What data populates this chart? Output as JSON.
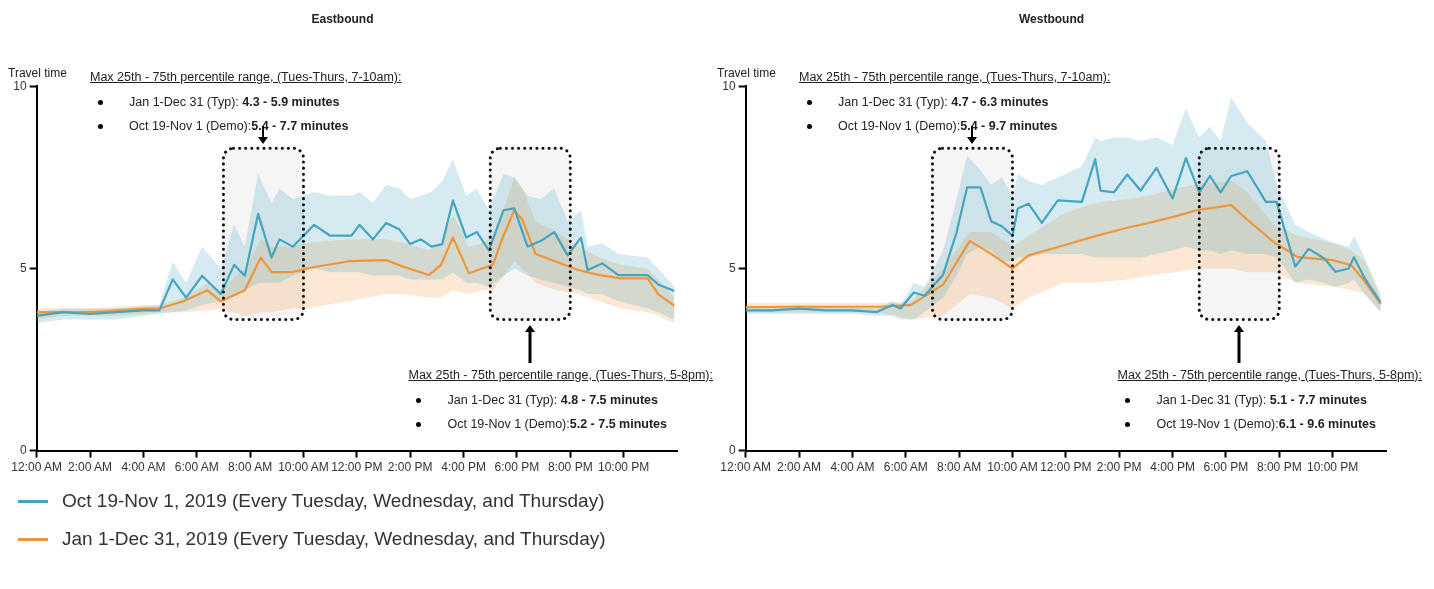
{
  "chart_data": [
    {
      "type": "line",
      "title": "Eastbound",
      "ylabel": "Travel time",
      "xlim": [
        0,
        24
      ],
      "ylim": [
        0,
        10
      ],
      "yticks": [
        0,
        5,
        10
      ],
      "xticks": [
        {
          "value": 0,
          "label": "12:00 AM"
        },
        {
          "value": 2,
          "label": "2:00 AM"
        },
        {
          "value": 4,
          "label": "4:00 AM"
        },
        {
          "value": 6,
          "label": "6:00 AM"
        },
        {
          "value": 8,
          "label": "8:00 AM"
        },
        {
          "value": 10,
          "label": "10:00 AM"
        },
        {
          "value": 12,
          "label": "12:00 PM"
        },
        {
          "value": 14,
          "label": "2:00 PM"
        },
        {
          "value": 16,
          "label": "4:00 PM"
        },
        {
          "value": 18,
          "label": "6:00 PM"
        },
        {
          "value": 20,
          "label": "8:00 PM"
        },
        {
          "value": 22,
          "label": "10:00 PM"
        }
      ],
      "grid": false,
      "legend": "bottom",
      "marker": "none",
      "line_style": "solid",
      "bands": [
        {
          "axis": "x",
          "from": 7,
          "to": 10
        },
        {
          "axis": "x",
          "from": 17,
          "to": 20
        }
      ],
      "annotations": [
        "Max 25th - 75th percentile range,  (Tues-Thurs, 7-10am):",
        "Jan 1-Dec 31 (Typ): 4.3 - 5.9 minutes",
        "Oct 19-Nov 1 (Demo):5.4 - 7.7 minutes",
        "Max 25th - 75th percentile range,  (Tues-Thurs, 5-8pm):",
        "Jan 1-Dec 31 (Typ): 4.8 - 7.5 minutes",
        "Oct 19-Nov 1 (Demo):5.2 - 7.5 minutes"
      ],
      "series": [
        {
          "name": "Oct 19-Nov 1, 2019 (Every Tuesday, Wednesday, and Thursday)",
          "color": "#45a5be",
          "x": [
            0,
            1,
            2,
            3,
            4,
            4.6,
            5.1,
            5.6,
            6.2,
            6.9,
            7.4,
            7.8,
            8.3,
            8.8,
            9.1,
            9.6,
            10.4,
            11,
            11.8,
            12.1,
            12.6,
            13.1,
            13.6,
            14,
            14.4,
            14.8,
            15.2,
            15.6,
            16.1,
            16.5,
            16.95,
            17.5,
            17.9,
            18.4,
            18.9,
            19.4,
            19.9,
            20.4,
            20.65,
            21.2,
            21.8,
            22.9,
            23.3,
            23.9
          ],
          "values": [
            3.7,
            3.8,
            3.75,
            3.8,
            3.85,
            3.85,
            4.7,
            4.2,
            4.8,
            4.3,
            5.1,
            4.8,
            6.5,
            5.3,
            5.8,
            5.6,
            6.2,
            5.9,
            5.9,
            6.2,
            5.8,
            6.25,
            6.07,
            5.67,
            5.8,
            5.6,
            5.67,
            6.87,
            5.85,
            6.0,
            5.5,
            6.6,
            6.65,
            5.6,
            5.76,
            6.0,
            5.36,
            5.85,
            4.96,
            5.14,
            4.82,
            4.82,
            4.56,
            4.38
          ],
          "upper": [
            3.8,
            3.9,
            3.9,
            3.9,
            3.95,
            4.0,
            5.2,
            4.6,
            5.6,
            5.0,
            6.2,
            5.6,
            7.6,
            6.8,
            7.2,
            6.9,
            7.1,
            7.0,
            7.0,
            7.1,
            6.8,
            7.3,
            7.2,
            6.9,
            7.0,
            7.1,
            7.4,
            8.0,
            7.0,
            7.2,
            6.6,
            7.6,
            7.5,
            7.0,
            6.9,
            7.2,
            6.3,
            6.6,
            5.6,
            5.7,
            5.4,
            5.3,
            5.0,
            4.5
          ],
          "lower": [
            3.5,
            3.6,
            3.6,
            3.6,
            3.7,
            3.75,
            3.8,
            3.85,
            4.0,
            4.1,
            4.3,
            4.4,
            4.6,
            4.6,
            4.6,
            4.8,
            5.0,
            4.9,
            4.9,
            4.9,
            4.8,
            4.8,
            4.8,
            4.7,
            4.7,
            4.7,
            4.7,
            4.9,
            4.6,
            4.6,
            4.5,
            4.8,
            5.0,
            4.8,
            4.7,
            4.6,
            4.5,
            4.4,
            4.3,
            4.3,
            4.1,
            3.9,
            3.8,
            3.6
          ]
        },
        {
          "name": "Jan 1-Dec 31, 2019 (Every Tuesday, Wednesday, and Thursday)",
          "color": "#f0963a",
          "x": [
            0,
            1,
            2,
            3,
            4,
            4.6,
            5.5,
            6.4,
            6.9,
            7.8,
            8.4,
            8.8,
            9.6,
            10.1,
            11.7,
            13.1,
            13.75,
            14.7,
            15.15,
            15.6,
            16.2,
            16.7,
            17.1,
            17.4,
            17.9,
            18.2,
            18.7,
            19.5,
            20.3,
            21.1,
            21.9,
            22.9,
            23.3,
            23.9
          ],
          "values": [
            3.8,
            3.8,
            3.8,
            3.85,
            3.9,
            3.9,
            4.1,
            4.4,
            4.1,
            4.4,
            5.3,
            4.9,
            4.9,
            5.0,
            5.2,
            5.23,
            5.05,
            4.82,
            5.09,
            5.85,
            4.87,
            5.0,
            5.1,
            5.72,
            6.6,
            6.34,
            5.4,
            5.18,
            4.96,
            4.82,
            4.73,
            4.73,
            4.29,
            3.98
          ],
          "upper": [
            3.9,
            3.9,
            3.9,
            3.95,
            4.0,
            4.0,
            4.2,
            4.6,
            4.4,
            5.0,
            5.8,
            5.6,
            5.6,
            5.7,
            5.8,
            5.8,
            5.7,
            5.5,
            5.7,
            6.5,
            5.6,
            5.7,
            5.9,
            6.4,
            7.5,
            7.2,
            6.3,
            6.0,
            5.6,
            5.3,
            5.1,
            5.0,
            4.7,
            4.2
          ],
          "lower": [
            3.6,
            3.7,
            3.7,
            3.7,
            3.75,
            3.8,
            3.8,
            3.85,
            3.9,
            3.7,
            3.8,
            3.8,
            3.9,
            3.9,
            4.1,
            4.3,
            4.3,
            4.2,
            4.2,
            4.4,
            4.3,
            4.4,
            4.4,
            4.7,
            5.2,
            5.0,
            4.6,
            4.4,
            4.3,
            4.1,
            3.9,
            3.8,
            3.7,
            3.5
          ]
        }
      ]
    },
    {
      "type": "line",
      "title": "Westbound",
      "ylabel": "Travel time",
      "xlim": [
        0,
        24
      ],
      "ylim": [
        0,
        10
      ],
      "yticks": [
        0,
        5,
        10
      ],
      "xticks": [
        {
          "value": 0,
          "label": "12:00 AM"
        },
        {
          "value": 2,
          "label": "2:00 AM"
        },
        {
          "value": 4,
          "label": "4:00 AM"
        },
        {
          "value": 6,
          "label": "6:00 AM"
        },
        {
          "value": 8,
          "label": "8:00 AM"
        },
        {
          "value": 10,
          "label": "10:00 AM"
        },
        {
          "value": 12,
          "label": "12:00 PM"
        },
        {
          "value": 14,
          "label": "2:00 PM"
        },
        {
          "value": 16,
          "label": "4:00 PM"
        },
        {
          "value": 18,
          "label": "6:00 PM"
        },
        {
          "value": 20,
          "label": "8:00 PM"
        },
        {
          "value": 22,
          "label": "10:00 PM"
        }
      ],
      "grid": false,
      "marker": "none",
      "line_style": "solid",
      "bands": [
        {
          "axis": "x",
          "from": 7,
          "to": 10
        },
        {
          "axis": "x",
          "from": 17,
          "to": 20
        }
      ],
      "annotations": [
        "Max 25th - 75th percentile range,  (Tues-Thurs, 7-10am):",
        "Jan 1-Dec 31 (Typ): 4.7 - 6.3 minutes",
        "Oct 19-Nov 1 (Demo):5.4 - 9.7 minutes",
        "Max 25th - 75th percentile range,  (Tues-Thurs, 5-8pm):",
        "Jan 1-Dec 31 (Typ): 5.1 - 7.7 minutes",
        "Oct 19-Nov 1 (Demo):6.1 - 9.6 minutes"
      ],
      "series": [
        {
          "color": "#45a5be",
          "x": [
            0,
            1,
            2,
            3,
            4,
            4.9,
            5.5,
            5.8,
            6.3,
            6.7,
            7.4,
            7.9,
            8.3,
            8.8,
            9.2,
            9.6,
            10,
            10.2,
            10.6,
            11.1,
            11.7,
            12.6,
            13.1,
            13.3,
            13.8,
            14.3,
            14.8,
            15.4,
            16,
            16.5,
            17,
            17.4,
            17.8,
            18.2,
            18.8,
            19.5,
            19.9,
            20.6,
            21.1,
            21.7,
            22.1,
            22.6,
            22.8,
            23.2,
            23.8
          ],
          "values": [
            3.85,
            3.85,
            3.9,
            3.85,
            3.85,
            3.8,
            4.0,
            3.9,
            4.34,
            4.25,
            4.83,
            5.98,
            7.23,
            7.23,
            6.3,
            6.16,
            5.9,
            6.65,
            6.78,
            6.25,
            6.87,
            6.83,
            8.0,
            7.14,
            7.09,
            7.58,
            7.14,
            7.76,
            6.92,
            8.03,
            7.09,
            7.54,
            7.09,
            7.54,
            7.67,
            6.83,
            6.83,
            5.05,
            5.54,
            5.27,
            4.91,
            5.0,
            5.31,
            4.73,
            4.07
          ],
          "upper": [
            3.95,
            3.95,
            4.0,
            3.95,
            3.95,
            3.9,
            4.1,
            4.0,
            4.6,
            4.5,
            5.5,
            6.9,
            8.1,
            7.7,
            7.3,
            7.5,
            7.0,
            7.6,
            7.4,
            7.3,
            7.5,
            7.8,
            8.6,
            8.5,
            8.6,
            8.6,
            8.5,
            8.6,
            8.4,
            9.4,
            8.6,
            8.9,
            8.5,
            9.7,
            9.0,
            8.5,
            7.3,
            6.2,
            6.0,
            5.8,
            5.7,
            5.6,
            5.9,
            5.3,
            4.3
          ],
          "lower": [
            3.75,
            3.75,
            3.75,
            3.75,
            3.75,
            3.7,
            3.7,
            3.6,
            3.6,
            3.8,
            4.2,
            4.8,
            5.4,
            5.6,
            5.5,
            5.2,
            5.2,
            5.3,
            5.3,
            5.4,
            5.4,
            5.4,
            5.3,
            5.3,
            5.3,
            5.3,
            5.3,
            5.4,
            5.5,
            5.6,
            5.5,
            5.5,
            5.4,
            5.5,
            5.4,
            5.4,
            5.3,
            4.6,
            4.7,
            4.6,
            4.5,
            4.6,
            4.7,
            4.3,
            3.8
          ]
        },
        {
          "color": "#f0963a",
          "x": [
            0,
            2,
            4,
            5,
            6.2,
            7.4,
            8.4,
            9.2,
            10,
            10.6,
            11.9,
            13.1,
            14.3,
            15.1,
            16.1,
            16.9,
            18.2,
            18.8,
            19.8,
            20.7,
            22,
            22.7,
            23.2,
            23.8
          ],
          "values": [
            3.94,
            3.95,
            3.95,
            3.95,
            4.0,
            4.56,
            5.76,
            5.4,
            5.0,
            5.36,
            5.63,
            5.89,
            6.12,
            6.25,
            6.43,
            6.6,
            6.74,
            6.34,
            5.72,
            5.31,
            5.23,
            5.09,
            4.65,
            4.02
          ],
          "upper": [
            4.05,
            4.05,
            4.05,
            4.05,
            4.1,
            5.0,
            6.0,
            6.0,
            5.6,
            5.9,
            6.5,
            6.8,
            6.9,
            7.0,
            7.2,
            7.3,
            7.4,
            7.1,
            6.2,
            5.9,
            5.7,
            5.5,
            5.2,
            4.2
          ],
          "lower": [
            3.8,
            3.8,
            3.8,
            3.8,
            3.6,
            3.7,
            4.3,
            4.2,
            3.9,
            4.2,
            4.6,
            4.6,
            4.7,
            4.8,
            4.9,
            5.0,
            5.0,
            4.9,
            4.9,
            4.6,
            4.5,
            4.4,
            4.3,
            3.8
          ]
        }
      ]
    }
  ]
}
